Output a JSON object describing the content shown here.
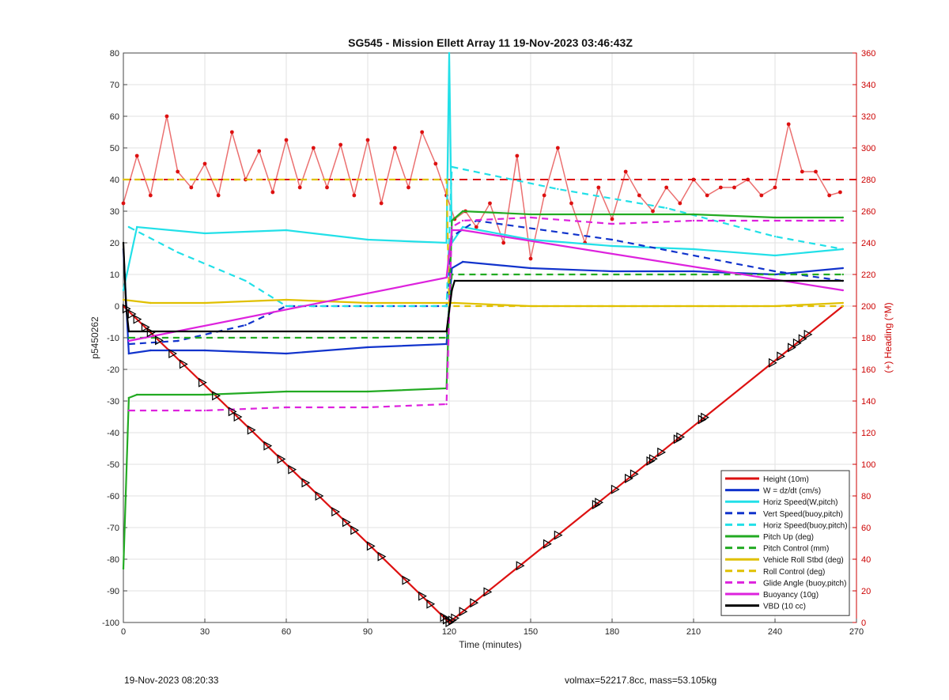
{
  "footer": {
    "left": "19-Nov-2023 08:20:33",
    "right": "volmax=52217.8cc, mass=53.105kg"
  },
  "chart_data": {
    "type": "line",
    "title": "SG545 - Mission Ellett Array 11 19-Nov-2023 03:46:43Z",
    "xlabel": "Time (minutes)",
    "ylabel": "p5450262",
    "y2label": "(+) Heading (°M)",
    "xlim": [
      0,
      270
    ],
    "ylim": [
      -100,
      80
    ],
    "y2lim": [
      0,
      360
    ],
    "xticks": [
      0,
      30,
      60,
      90,
      120,
      150,
      180,
      210,
      240,
      270
    ],
    "yticks": [
      -100,
      -90,
      -80,
      -70,
      -60,
      -50,
      -40,
      -30,
      -20,
      -10,
      0,
      10,
      20,
      30,
      40,
      50,
      60,
      70,
      80
    ],
    "y2ticks": [
      0,
      20,
      40,
      60,
      80,
      100,
      120,
      140,
      160,
      180,
      200,
      220,
      240,
      260,
      280,
      300,
      320,
      340,
      360
    ],
    "grid": true,
    "legend_position": "bottom-right",
    "legend": [
      {
        "label": "Height (10m)",
        "color": "#dd1111",
        "dash": "solid"
      },
      {
        "label": "W = dz/dt (cm/s)",
        "color": "#1133cc",
        "dash": "solid"
      },
      {
        "label": "Horiz Speed(W,pitch)",
        "color": "#22e0e8",
        "dash": "solid"
      },
      {
        "label": "Vert Speed(buoy,pitch)",
        "color": "#1133cc",
        "dash": "dashed"
      },
      {
        "label": "Horiz Speed(buoy,pitch)",
        "color": "#22e0e8",
        "dash": "dashed"
      },
      {
        "label": "Pitch Up (deg)",
        "color": "#22aa22",
        "dash": "solid"
      },
      {
        "label": "Pitch Control (mm)",
        "color": "#22aa22",
        "dash": "dashed"
      },
      {
        "label": "Vehicle Roll Stbd (deg)",
        "color": "#e0c000",
        "dash": "solid"
      },
      {
        "label": "Roll Control (deg)",
        "color": "#e0c000",
        "dash": "dashed"
      },
      {
        "label": "Glide Angle (buoy,pitch)",
        "color": "#dd22dd",
        "dash": "dashed"
      },
      {
        "label": "Buoyancy (10g)",
        "color": "#dd22dd",
        "dash": "solid"
      },
      {
        "label": "VBD (10 cc)",
        "color": "#000000",
        "dash": "solid"
      }
    ],
    "series": [
      {
        "name": "Height (10m)",
        "color": "#dd1111",
        "x": [
          0,
          120,
          265
        ],
        "y": [
          0,
          -100,
          0
        ]
      },
      {
        "name": "W = dz/dt (cm/s)",
        "color": "#1133cc",
        "x": [
          0,
          2,
          10,
          30,
          60,
          90,
          119,
          121,
          125,
          150,
          180,
          210,
          240,
          265
        ],
        "y": [
          18,
          -15,
          -14,
          -14,
          -15,
          -13,
          -12,
          12,
          14,
          12,
          11,
          11,
          10,
          12
        ]
      },
      {
        "name": "Horiz Speed(W,pitch)",
        "color": "#22e0e8",
        "x": [
          0,
          5,
          30,
          60,
          90,
          119,
          120,
          121,
          125,
          150,
          180,
          210,
          240,
          265
        ],
        "y": [
          5,
          25,
          23,
          24,
          21,
          20,
          80,
          20,
          25,
          21,
          19,
          18,
          16,
          18
        ]
      },
      {
        "name": "Vert Speed(buoy,pitch)",
        "color": "#1133cc",
        "x": [
          2,
          20,
          45,
          60,
          70,
          119,
          121,
          130,
          180,
          240,
          265
        ],
        "y": [
          -12,
          -11,
          -6,
          0,
          0,
          0,
          22,
          27,
          21,
          11,
          8
        ]
      },
      {
        "name": "Horiz Speed(buoy,pitch)",
        "color": "#22e0e8",
        "x": [
          2,
          20,
          45,
          60,
          70,
          119,
          121,
          160,
          200,
          240,
          265
        ],
        "y": [
          25,
          17,
          8,
          0,
          0,
          0,
          44,
          37,
          31,
          22,
          18
        ]
      },
      {
        "name": "Pitch Up (deg)",
        "color": "#22aa22",
        "x": [
          0,
          2,
          5,
          30,
          60,
          90,
          119,
          121,
          125,
          150,
          180,
          210,
          240,
          265
        ],
        "y": [
          -83,
          -29,
          -28,
          -28,
          -27,
          -27,
          -26,
          27,
          30,
          29,
          29,
          29,
          28,
          28
        ]
      },
      {
        "name": "Pitch Control (mm)",
        "color": "#22aa22",
        "x": [
          2,
          119,
          121,
          265
        ],
        "y": [
          -10,
          -10,
          10,
          10
        ]
      },
      {
        "name": "Vehicle Roll Stbd (deg)",
        "color": "#e0c000",
        "x": [
          0,
          10,
          30,
          60,
          90,
          119,
          122,
          150,
          180,
          210,
          240,
          265
        ],
        "y": [
          2,
          1,
          1,
          2,
          1,
          1,
          1,
          0,
          0,
          0,
          0,
          1
        ]
      },
      {
        "name": "Roll Control (deg)",
        "color": "#e0c000",
        "x": [
          0,
          119,
          120,
          265
        ],
        "y": [
          40,
          40,
          0,
          0
        ]
      },
      {
        "name": "Glide Angle (buoy,pitch)",
        "color": "#dd22dd",
        "x": [
          2,
          30,
          60,
          90,
          119,
          121,
          125,
          150,
          180,
          210,
          240,
          265
        ],
        "y": [
          -33,
          -33,
          -32,
          -32,
          -31,
          25,
          27,
          28,
          26,
          27,
          27,
          27
        ]
      },
      {
        "name": "Buoyancy (10g)",
        "color": "#dd22dd",
        "x": [
          2,
          119,
          121,
          125,
          265
        ],
        "y": [
          -11,
          9,
          24,
          24,
          5
        ]
      },
      {
        "name": "VBD (10 cc)",
        "color": "#000000",
        "x": [
          0,
          1,
          2,
          119,
          121,
          122,
          265
        ],
        "y": [
          20,
          0,
          -8,
          -8,
          5,
          8,
          8
        ]
      }
    ],
    "heading_series": {
      "name": "Heading (°M)",
      "color": "#dd1111",
      "x": [
        0,
        5,
        10,
        16,
        20,
        25,
        30,
        35,
        40,
        45,
        50,
        55,
        60,
        65,
        70,
        75,
        80,
        85,
        90,
        95,
        100,
        105,
        110,
        115,
        119,
        122,
        126,
        130,
        135,
        140,
        145,
        150,
        155,
        160,
        165,
        170,
        175,
        180,
        185,
        190,
        195,
        200,
        205,
        210,
        215,
        220,
        225,
        230,
        235,
        240,
        245,
        250,
        255,
        260,
        264
      ],
      "y": [
        265,
        295,
        270,
        320,
        285,
        275,
        290,
        270,
        310,
        280,
        298,
        272,
        305,
        275,
        300,
        275,
        302,
        270,
        305,
        265,
        300,
        275,
        310,
        290,
        270,
        255,
        260,
        250,
        265,
        240,
        295,
        230,
        270,
        300,
        265,
        240,
        275,
        255,
        285,
        270,
        260,
        275,
        265,
        280,
        270,
        275,
        275,
        280,
        270,
        275,
        315,
        285,
        285,
        270,
        272
      ]
    },
    "heading_dashed": {
      "color": "#dd1111",
      "value": 280
    },
    "markers": {
      "type": "triangle",
      "color": "#000000",
      "x": [
        1,
        3,
        5,
        8,
        10,
        13,
        18,
        22,
        29,
        34,
        40,
        42,
        47,
        53,
        58,
        62,
        67,
        72,
        78,
        82,
        85,
        91,
        95,
        104,
        110,
        113,
        118,
        119,
        120,
        121,
        122,
        125,
        129,
        134,
        146,
        156,
        160,
        174,
        175,
        181,
        186,
        188,
        194,
        195,
        198,
        204,
        205,
        213,
        214,
        239,
        242,
        246,
        248,
        250,
        252
      ]
    }
  }
}
